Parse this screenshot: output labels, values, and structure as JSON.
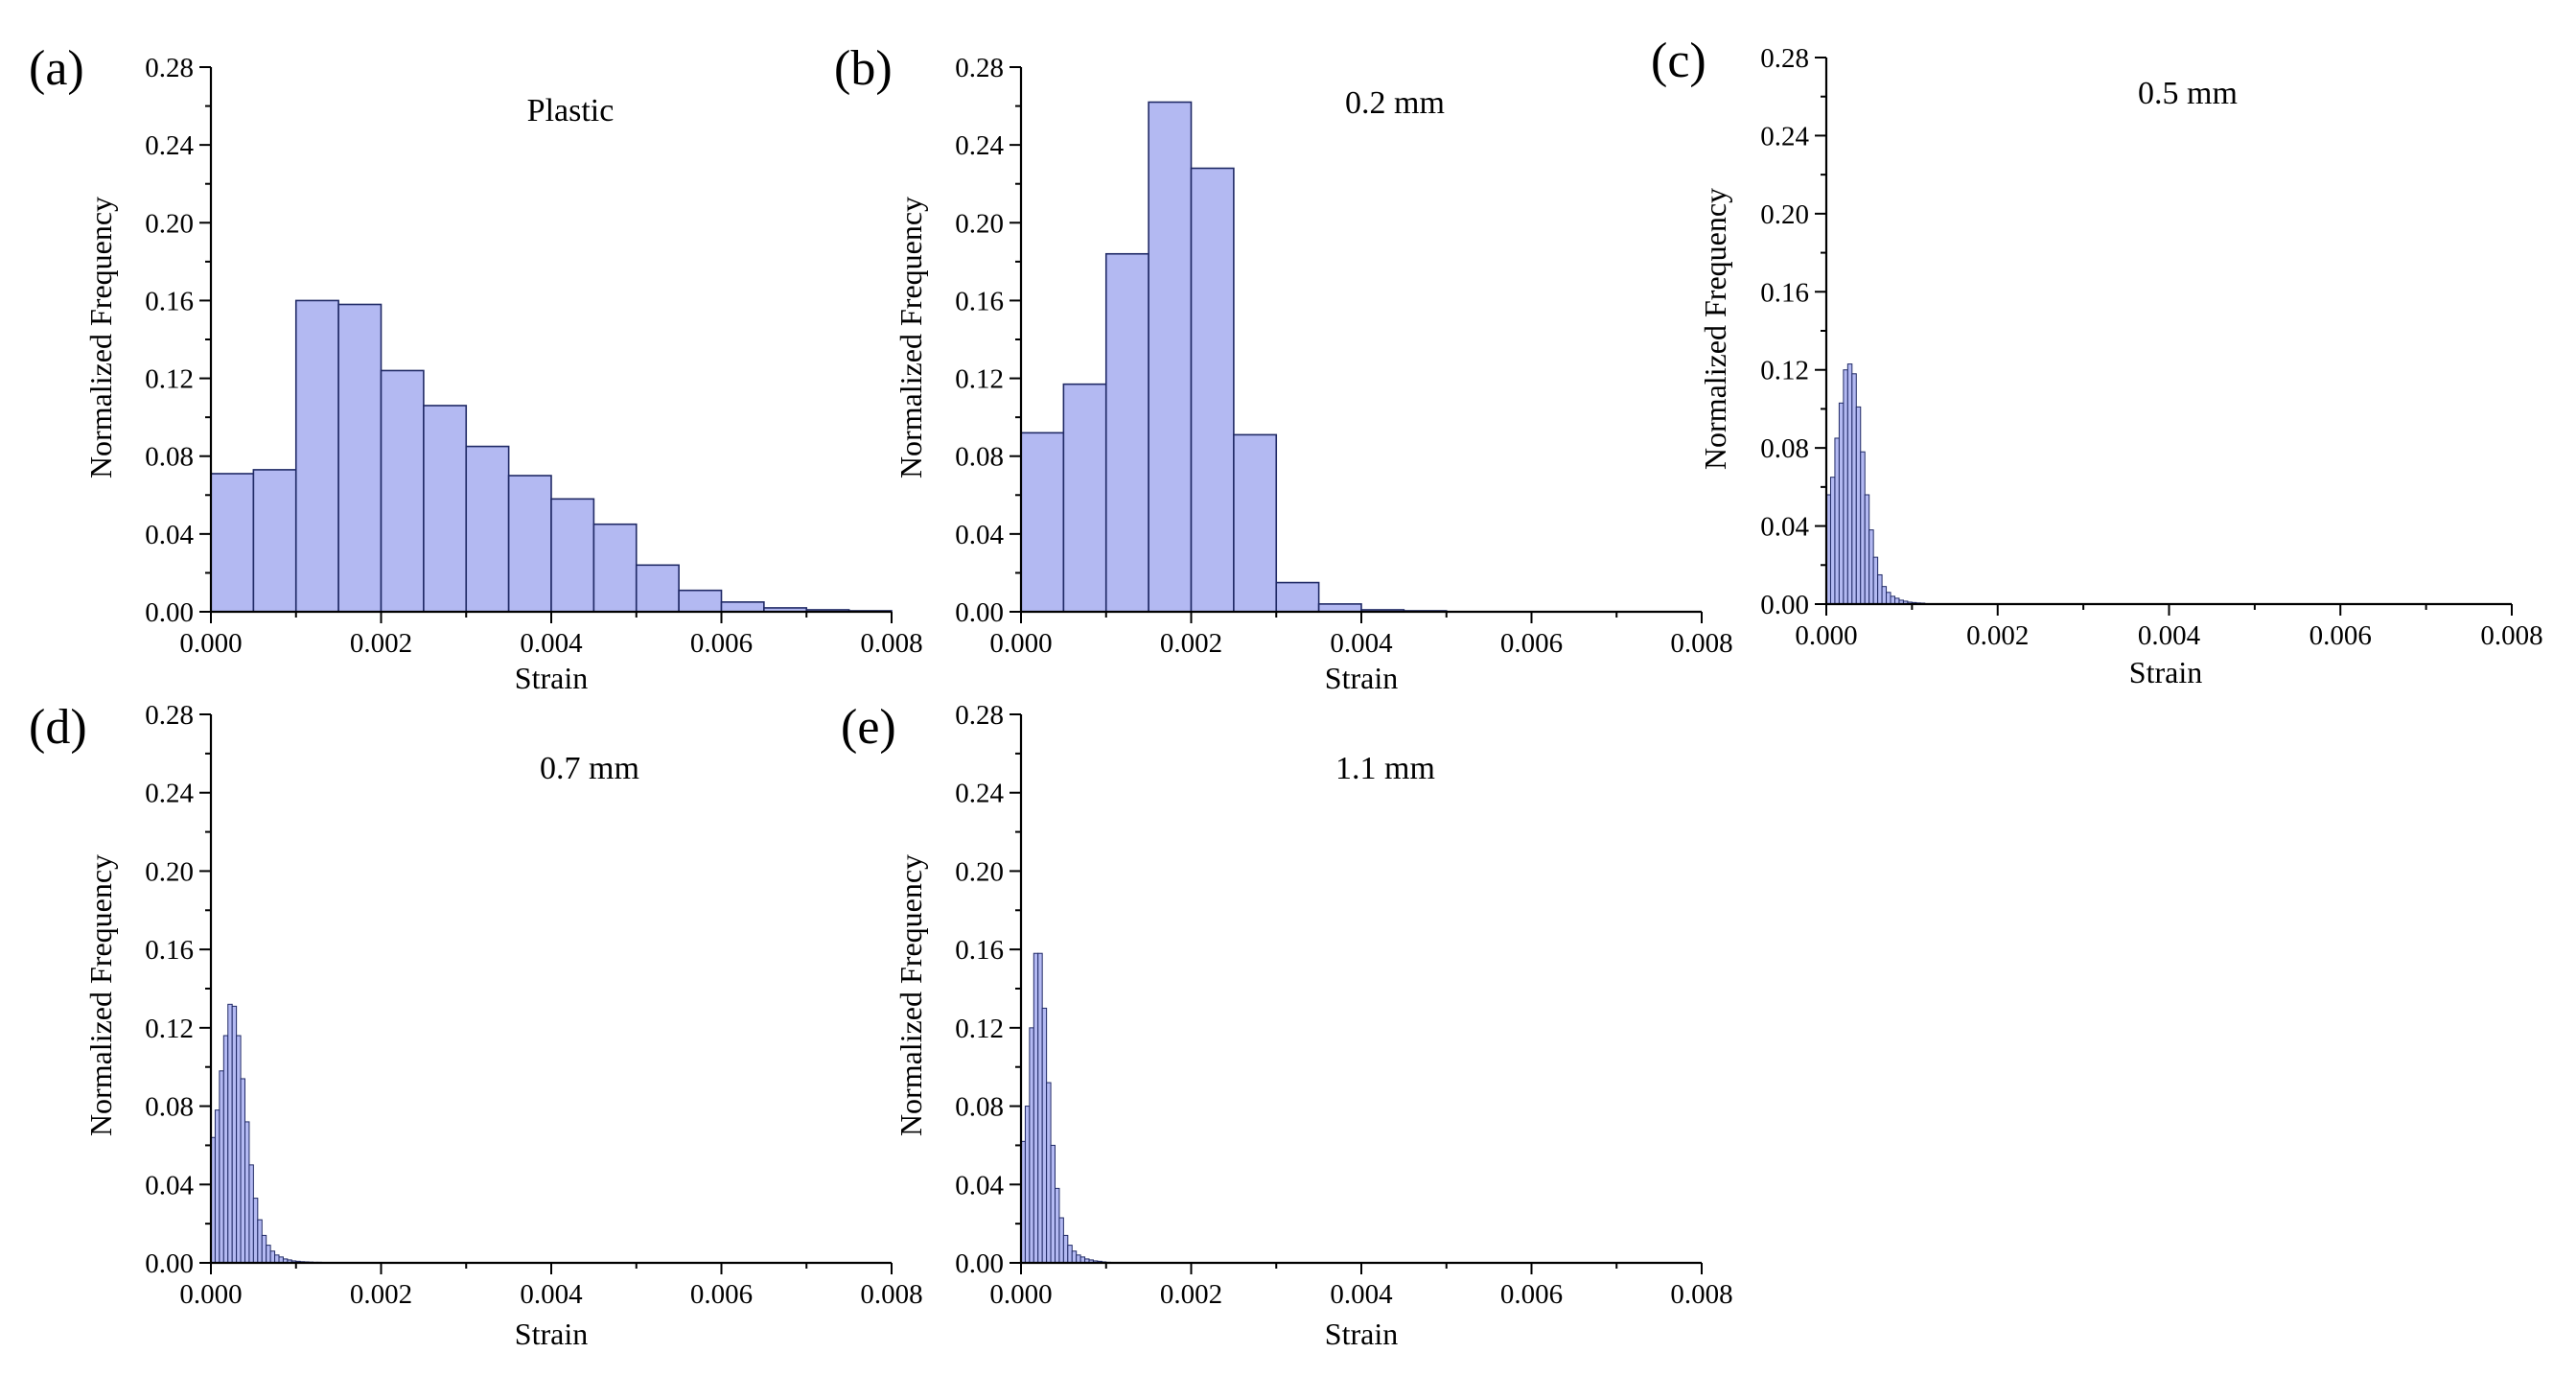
{
  "chart_data": [
    {
      "type": "bar",
      "panel_label": "(a)",
      "title": "Plastic",
      "xlabel": "Strain",
      "ylabel": "Normalized Frequency",
      "xlim": [
        0,
        0.008
      ],
      "ylim": [
        0,
        0.28
      ],
      "x_ticks": [
        "0.000",
        "0.002",
        "0.004",
        "0.006",
        "0.008"
      ],
      "y_ticks": [
        "0.00",
        "0.04",
        "0.08",
        "0.12",
        "0.16",
        "0.20",
        "0.24",
        "0.28"
      ],
      "bin_width": 0.0005,
      "bin_start": 0,
      "values": [
        0.071,
        0.073,
        0.16,
        0.158,
        0.124,
        0.106,
        0.085,
        0.07,
        0.058,
        0.045,
        0.024,
        0.011,
        0.005,
        0.002,
        0.001,
        0.0005
      ]
    },
    {
      "type": "bar",
      "panel_label": "(b)",
      "title": "0.2 mm",
      "xlabel": "Strain",
      "ylabel": "Normalized Frequency",
      "xlim": [
        0,
        0.008
      ],
      "ylim": [
        0,
        0.28
      ],
      "x_ticks": [
        "0.000",
        "0.002",
        "0.004",
        "0.006",
        "0.008"
      ],
      "y_ticks": [
        "0.00",
        "0.04",
        "0.08",
        "0.12",
        "0.16",
        "0.20",
        "0.24",
        "0.28"
      ],
      "bin_width": 0.0005,
      "bin_start": 0,
      "values": [
        0.092,
        0.117,
        0.184,
        0.262,
        0.228,
        0.091,
        0.015,
        0.004,
        0.001,
        0.0005
      ]
    },
    {
      "type": "bar",
      "panel_label": "(c)",
      "title": "0.5 mm",
      "xlabel": "Strain",
      "ylabel": "Normalized Frequency",
      "xlim": [
        0,
        0.008
      ],
      "ylim": [
        0,
        0.28
      ],
      "x_ticks": [
        "0.000",
        "0.002",
        "0.004",
        "0.006",
        "0.008"
      ],
      "y_ticks": [
        "0.00",
        "0.04",
        "0.08",
        "0.12",
        "0.16",
        "0.20",
        "0.24",
        "0.28"
      ],
      "bin_width": 5e-05,
      "bin_start": 0,
      "values": [
        0.056,
        0.065,
        0.085,
        0.103,
        0.12,
        0.123,
        0.118,
        0.101,
        0.078,
        0.056,
        0.038,
        0.024,
        0.015,
        0.009,
        0.006,
        0.004,
        0.003,
        0.002,
        0.0015,
        0.001,
        0.0008,
        0.0006,
        0.0005
      ]
    },
    {
      "type": "bar",
      "panel_label": "(d)",
      "title": "0.7 mm",
      "xlabel": "Strain",
      "ylabel": "Normalized Frequency",
      "xlim": [
        0,
        0.008
      ],
      "ylim": [
        0,
        0.28
      ],
      "x_ticks": [
        "0.000",
        "0.002",
        "0.004",
        "0.006",
        "0.008"
      ],
      "y_ticks": [
        "0.00",
        "0.04",
        "0.08",
        "0.12",
        "0.16",
        "0.20",
        "0.24",
        "0.28"
      ],
      "bin_width": 5e-05,
      "bin_start": 0,
      "values": [
        0.064,
        0.078,
        0.098,
        0.116,
        0.132,
        0.131,
        0.116,
        0.094,
        0.072,
        0.05,
        0.033,
        0.022,
        0.014,
        0.009,
        0.006,
        0.004,
        0.003,
        0.002,
        0.0015,
        0.001,
        0.0008,
        0.0006,
        0.0005,
        0.0004,
        0.0003,
        0.0003,
        0.0002,
        0.0002
      ]
    },
    {
      "type": "bar",
      "panel_label": "(e)",
      "title": "1.1 mm",
      "xlabel": "Strain",
      "ylabel": "Normalized Frequency",
      "xlim": [
        0,
        0.008
      ],
      "ylim": [
        0,
        0.28
      ],
      "x_ticks": [
        "0.000",
        "0.002",
        "0.004",
        "0.006",
        "0.008"
      ],
      "y_ticks": [
        "0.00",
        "0.04",
        "0.08",
        "0.12",
        "0.16",
        "0.20",
        "0.24",
        "0.28"
      ],
      "bin_width": 5e-05,
      "bin_start": 0,
      "values": [
        0.062,
        0.08,
        0.12,
        0.158,
        0.158,
        0.13,
        0.092,
        0.06,
        0.038,
        0.023,
        0.014,
        0.009,
        0.006,
        0.004,
        0.003,
        0.002,
        0.0015,
        0.001,
        0.0008,
        0.0005,
        0.0003
      ]
    }
  ]
}
